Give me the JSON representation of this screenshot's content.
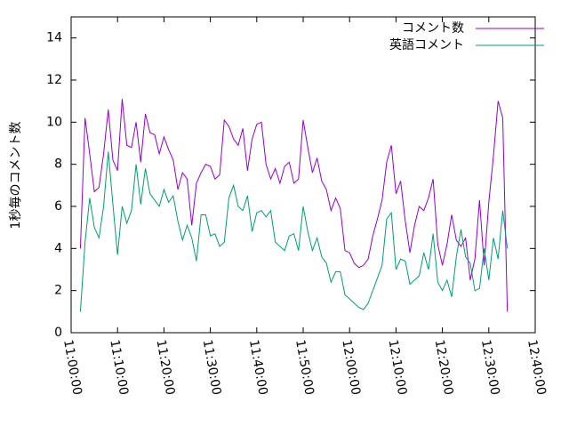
{
  "chart_data": {
    "type": "line",
    "ylabel": "1秒毎のコメント数",
    "x": [
      "11:02:00",
      "11:03:00",
      "11:04:00",
      "11:05:00",
      "11:06:00",
      "11:07:00",
      "11:08:00",
      "11:09:00",
      "11:10:00",
      "11:11:00",
      "11:12:00",
      "11:13:00",
      "11:14:00",
      "11:15:00",
      "11:16:00",
      "11:17:00",
      "11:18:00",
      "11:19:00",
      "11:20:00",
      "11:21:00",
      "11:22:00",
      "11:23:00",
      "11:24:00",
      "11:25:00",
      "11:26:00",
      "11:27:00",
      "11:28:00",
      "11:29:00",
      "11:30:00",
      "11:31:00",
      "11:32:00",
      "11:33:00",
      "11:34:00",
      "11:35:00",
      "11:36:00",
      "11:37:00",
      "11:38:00",
      "11:39:00",
      "11:40:00",
      "11:41:00",
      "11:42:00",
      "11:43:00",
      "11:44:00",
      "11:45:00",
      "11:46:00",
      "11:47:00",
      "11:48:00",
      "11:49:00",
      "11:50:00",
      "11:51:00",
      "11:52:00",
      "11:53:00",
      "11:54:00",
      "11:55:00",
      "11:56:00",
      "11:57:00",
      "11:58:00",
      "11:59:00",
      "12:00:00",
      "12:01:00",
      "12:02:00",
      "12:03:00",
      "12:04:00",
      "12:05:00",
      "12:06:00",
      "12:07:00",
      "12:08:00",
      "12:09:00",
      "12:10:00",
      "12:11:00",
      "12:12:00",
      "12:13:00",
      "12:14:00",
      "12:15:00",
      "12:16:00",
      "12:17:00",
      "12:18:00",
      "12:19:00",
      "12:20:00",
      "12:21:00",
      "12:22:00",
      "12:23:00",
      "12:24:00",
      "12:25:00",
      "12:26:00",
      "12:27:00",
      "12:28:00",
      "12:29:00",
      "12:30:00",
      "12:31:00",
      "12:32:00",
      "12:33:00",
      "12:34:00"
    ],
    "series": [
      {
        "name": "コメント数",
        "color": "#9400d3",
        "values": [
          4.0,
          10.2,
          8.5,
          6.7,
          6.9,
          8.5,
          10.6,
          8.2,
          7.7,
          11.1,
          8.9,
          8.8,
          10.0,
          8.1,
          10.4,
          9.5,
          9.4,
          8.5,
          9.3,
          8.7,
          8.2,
          6.8,
          7.6,
          7.3,
          5.1,
          7.1,
          7.6,
          8.0,
          7.9,
          7.3,
          7.5,
          10.1,
          9.8,
          9.2,
          8.9,
          9.7,
          7.7,
          9.2,
          9.9,
          10.0,
          8.0,
          7.3,
          7.8,
          7.1,
          7.9,
          8.1,
          7.1,
          7.3,
          10.1,
          8.8,
          7.6,
          8.3,
          7.2,
          6.8,
          5.8,
          6.4,
          5.9,
          3.9,
          3.8,
          3.3,
          3.1,
          3.2,
          3.5,
          4.6,
          5.4,
          6.3,
          8.1,
          8.9,
          6.6,
          7.2,
          5.3,
          3.8,
          5.1,
          6.0,
          5.8,
          6.4,
          7.3,
          4.2,
          3.2,
          4.2,
          5.6,
          4.4,
          4.1,
          4.5,
          2.5,
          3.5,
          6.3,
          3.2,
          6.2,
          8.4,
          11.0,
          10.2,
          1.0
        ]
      },
      {
        "name": "英語コメント",
        "color": "#009e73",
        "values": [
          1.0,
          4.3,
          6.4,
          5.0,
          4.5,
          6.0,
          8.6,
          6.1,
          3.7,
          6.0,
          5.2,
          5.8,
          8.0,
          6.1,
          7.8,
          6.6,
          6.3,
          6.0,
          6.8,
          6.2,
          6.5,
          5.3,
          4.4,
          5.1,
          4.5,
          3.4,
          5.6,
          5.6,
          4.6,
          4.7,
          4.1,
          4.3,
          6.4,
          7.0,
          6.0,
          5.8,
          6.5,
          4.8,
          5.7,
          5.8,
          5.5,
          5.8,
          4.3,
          4.1,
          3.9,
          4.6,
          4.7,
          3.9,
          6.0,
          4.8,
          3.9,
          4.5,
          3.6,
          3.3,
          2.4,
          2.9,
          2.9,
          1.8,
          1.6,
          1.4,
          1.2,
          1.1,
          1.4,
          2.0,
          2.6,
          3.2,
          5.4,
          5.7,
          3.0,
          3.5,
          3.4,
          2.3,
          2.5,
          2.7,
          3.8,
          3.0,
          4.7,
          2.4,
          2.0,
          2.5,
          1.7,
          3.6,
          4.9,
          3.6,
          3.3,
          2.0,
          2.1,
          4.0,
          2.5,
          4.5,
          3.5,
          5.8,
          4.0
        ]
      }
    ],
    "xlim": [
      "11:00:00",
      "12:40:00"
    ],
    "xticks": [
      "11:00:00",
      "11:10:00",
      "11:20:00",
      "11:30:00",
      "11:40:00",
      "11:50:00",
      "12:00:00",
      "12:10:00",
      "12:20:00",
      "12:30:00",
      "12:40:00"
    ],
    "ylim": [
      0,
      15
    ],
    "yticks": [
      0,
      2,
      4,
      6,
      8,
      10,
      12,
      14
    ],
    "legend": "top-right"
  }
}
